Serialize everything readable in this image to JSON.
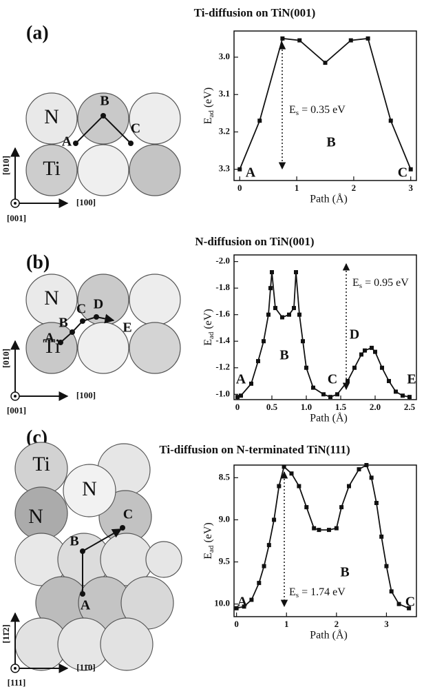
{
  "panels": [
    {
      "label": "(a)",
      "atoms": [
        "N",
        "Ti"
      ],
      "sites": [
        "A",
        "B",
        "C"
      ],
      "axes": [
        "[010]",
        "[100]",
        "[001]"
      ]
    },
    {
      "label": "(b)",
      "atoms": [
        "N",
        "Ti"
      ],
      "sites": [
        "A",
        "B",
        "C",
        "D",
        "E"
      ],
      "axes": [
        "[010]",
        "[100]",
        "[001]"
      ]
    },
    {
      "label": "(c)",
      "atoms": [
        "Ti",
        "N",
        "N"
      ],
      "sites": [
        "B",
        "C",
        "A"
      ],
      "axes": [
        "[11̄2]",
        "[11̄0]",
        "[111]"
      ]
    }
  ],
  "chart_data": [
    {
      "type": "line",
      "title": "Ti-diffusion on TiN(001)",
      "xlabel": "Path (Å)",
      "ylabel": {
        "text": "E",
        "sub": "ad",
        "suffix": "(eV)"
      },
      "x": [
        0,
        0.35,
        0.75,
        1.05,
        1.5,
        1.95,
        2.25,
        2.65,
        3.0
      ],
      "series": [
        {
          "color": "#111111",
          "values": [
            3.3,
            3.17,
            2.95,
            2.955,
            3.015,
            2.955,
            2.95,
            3.17,
            3.3
          ]
        }
      ],
      "xlim": [
        -0.1,
        3.1
      ],
      "ylim": [
        3.33,
        2.93
      ],
      "xticks": [
        0,
        1,
        2,
        3
      ],
      "yticks": [
        {
          "value": 3.0,
          "label": "3.0"
        },
        3.1,
        3.2,
        3.3
      ],
      "point_labels": [
        "A",
        "B",
        "C"
      ],
      "annotation": {
        "text": "E",
        "sub": "s",
        "suffix": "= 0.35 eV"
      }
    },
    {
      "type": "line",
      "title": "N-diffusion on TiN(001)",
      "xlabel": "Path (Å)",
      "ylabel": {
        "text": "E",
        "sub": "ad",
        "suffix": "(eV)"
      },
      "x": [
        0,
        0.05,
        0.2,
        0.3,
        0.38,
        0.45,
        0.48,
        0.5,
        0.55,
        0.65,
        0.75,
        0.82,
        0.85,
        0.9,
        0.95,
        1.0,
        1.1,
        1.25,
        1.35,
        1.45,
        1.6,
        1.7,
        1.8,
        1.85,
        1.95,
        2.0,
        2.1,
        2.2,
        2.3,
        2.4,
        2.5
      ],
      "series": [
        {
          "color": "#111111",
          "values": [
            -0.98,
            -0.99,
            -1.08,
            -1.25,
            -1.4,
            -1.6,
            -1.8,
            -1.92,
            -1.65,
            -1.58,
            -1.6,
            -1.65,
            -1.92,
            -1.6,
            -1.4,
            -1.2,
            -1.05,
            -1.0,
            -0.98,
            -1.0,
            -1.1,
            -1.2,
            -1.3,
            -1.33,
            -1.35,
            -1.32,
            -1.2,
            -1.1,
            -1.02,
            -0.99,
            -0.98
          ]
        }
      ],
      "xlim": [
        -0.05,
        2.6
      ],
      "ylim": [
        -0.96,
        -2.05
      ],
      "xticks": [
        0,
        0.5,
        {
          "value": 1,
          "label": "1.0"
        },
        1.5,
        {
          "value": 2,
          "label": "2.0"
        },
        2.5
      ],
      "yticks": [
        {
          "value": -2,
          "label": "-2.0"
        },
        -1.8,
        -1.6,
        -1.4,
        -1.2,
        {
          "value": -1,
          "label": "-1.0"
        }
      ],
      "point_labels": [
        "A",
        "B",
        "C",
        "D",
        "E"
      ],
      "annotation": {
        "text": "E",
        "sub": "s",
        "suffix": "= 0.95 eV"
      }
    },
    {
      "type": "line",
      "title": "Ti-diffusion on N-terminated TiN(111)",
      "xlabel": "Path (Å)",
      "ylabel": {
        "text": "E",
        "sub": "ad",
        "suffix": "(eV)"
      },
      "x": [
        0,
        0.15,
        0.3,
        0.45,
        0.55,
        0.65,
        0.75,
        0.85,
        0.95,
        1.1,
        1.25,
        1.4,
        1.55,
        1.65,
        1.85,
        2.0,
        2.1,
        2.25,
        2.45,
        2.6,
        2.7,
        2.8,
        2.9,
        3.0,
        3.1,
        3.25,
        3.45
      ],
      "series": [
        {
          "color": "#111111",
          "values": [
            10.05,
            10.03,
            9.95,
            9.75,
            9.55,
            9.3,
            9.0,
            8.6,
            8.37,
            8.45,
            8.6,
            8.85,
            9.1,
            9.12,
            9.12,
            9.1,
            8.85,
            8.6,
            8.4,
            8.35,
            8.5,
            8.8,
            9.2,
            9.55,
            9.85,
            10.0,
            10.05
          ]
        }
      ],
      "xlim": [
        -0.05,
        3.6
      ],
      "ylim": [
        10.15,
        8.35
      ],
      "xticks": [
        0,
        1,
        2,
        3
      ],
      "yticks": [
        8.5,
        {
          "value": 9,
          "label": "9.0"
        },
        9.5,
        {
          "value": 10,
          "label": "10.0"
        }
      ],
      "point_labels": [
        "A",
        "B",
        "C"
      ],
      "annotation": {
        "text": "E",
        "sub": "s",
        "suffix": "= 1.74 eV"
      }
    }
  ]
}
